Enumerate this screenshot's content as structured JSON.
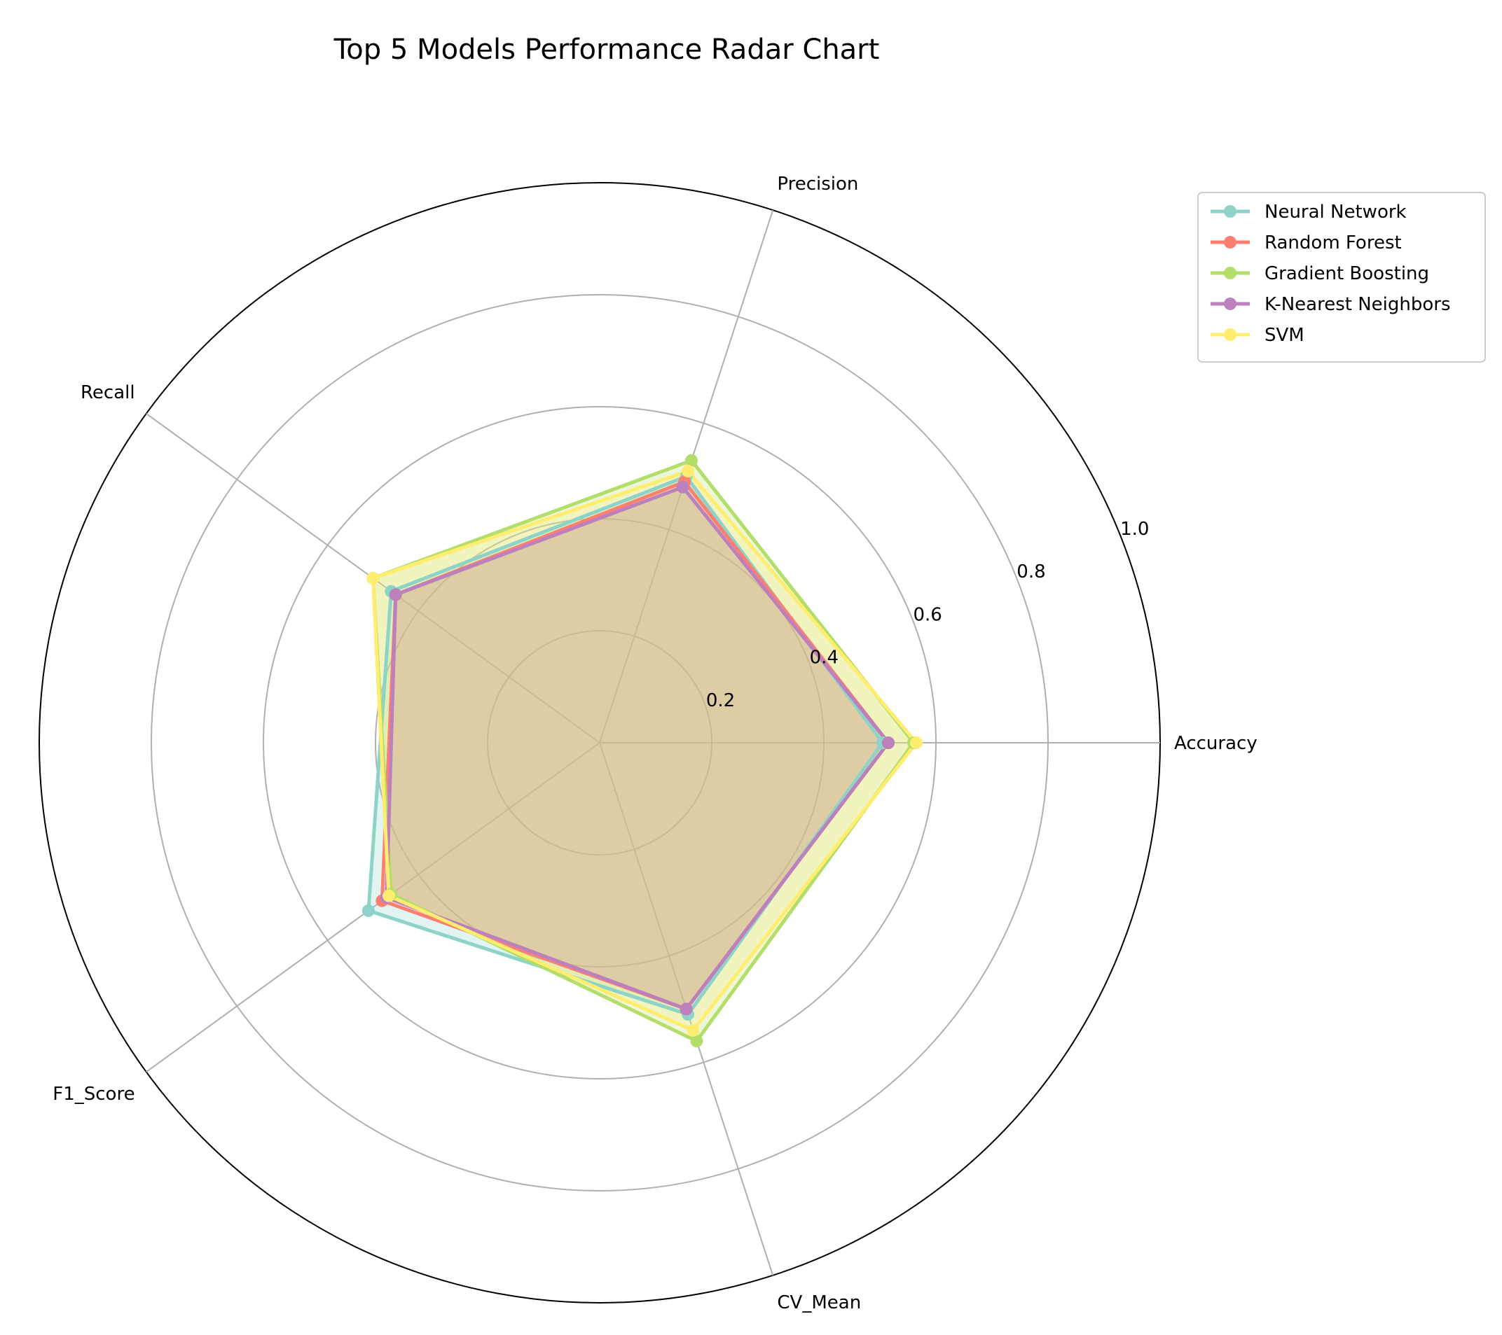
{
  "chart_data": {
    "type": "radar",
    "title": "Top 5 Models Performance Radar Chart",
    "axes": [
      "Accuracy",
      "Precision",
      "Recall",
      "F1_Score",
      "CV_Mean"
    ],
    "rlim": [
      0,
      1.0
    ],
    "rticks": [
      "0.2",
      "0.4",
      "0.6",
      "0.8",
      "1.0"
    ],
    "grid": true,
    "legend_position": "top-right",
    "series": [
      {
        "name": "Neural Network",
        "color": "#8dd3c7",
        "values": [
          0.505,
          0.5,
          0.46,
          0.51,
          0.51
        ]
      },
      {
        "name": "Random Forest",
        "color": "#fb8072",
        "values": [
          0.515,
          0.49,
          0.45,
          0.48,
          0.5
        ]
      },
      {
        "name": "Gradient Boosting",
        "color": "#b3de69",
        "values": [
          0.56,
          0.53,
          0.5,
          0.46,
          0.56
        ]
      },
      {
        "name": "K-Nearest Neighbors",
        "color": "#bc80bd",
        "values": [
          0.515,
          0.48,
          0.45,
          0.47,
          0.5
        ]
      },
      {
        "name": "SVM",
        "color": "#ffed6f",
        "values": [
          0.565,
          0.51,
          0.5,
          0.465,
          0.54
        ]
      }
    ]
  }
}
